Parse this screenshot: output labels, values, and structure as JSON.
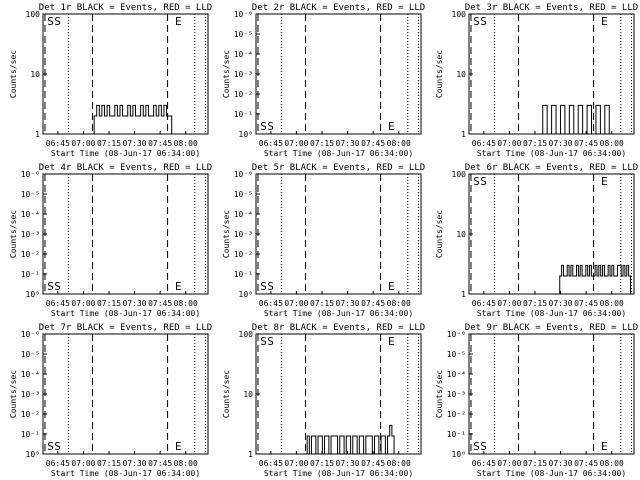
{
  "chart_data": [
    {
      "type": "line",
      "title": "Det 1r BLACK = Events, RED = LLD",
      "xlabel": "Start Time (08-Jun-17 06:34:00)",
      "ylabel": "Counts/sec",
      "xticks": [
        "06:45",
        "07:00",
        "07:15",
        "07:30",
        "07:45",
        "08:00"
      ],
      "yticks": [
        "1",
        "10",
        "100"
      ],
      "ylim": [
        1,
        100
      ],
      "yscale": "log",
      "grid": false,
      "series": [
        {
          "values": [
            2,
            3,
            2,
            3,
            2,
            3,
            2,
            2,
            3,
            2,
            3,
            2,
            2,
            3,
            2,
            3,
            2,
            2,
            3,
            2,
            3,
            2,
            2,
            3,
            2,
            3,
            2,
            3,
            2,
            2
          ]
        }
      ],
      "markers": [
        "S",
        "S",
        "E"
      ]
    },
    {
      "type": "line",
      "title": "Det 2r BLACK = Events, RED = LLD",
      "xlabel": "Start Time (08-Jun-17 06:34:00)",
      "ylabel": "Counts/sec",
      "xticks": [
        "06:45",
        "07:00",
        "07:15",
        "07:30",
        "07:45",
        "08:00"
      ],
      "yticks": [
        "10⁰",
        "10⁻¹",
        "10⁻²",
        "10⁻³",
        "10⁻⁴",
        "10⁻⁵",
        "10⁻⁶"
      ],
      "grid": false,
      "series": [],
      "markers": [
        "S",
        "S",
        "E"
      ]
    },
    {
      "type": "line",
      "title": "Det 3r BLACK = Events, RED = LLD",
      "xlabel": "Start Time (08-Jun-17 06:34:00)",
      "ylabel": "Counts/sec",
      "xticks": [
        "06:45",
        "07:00",
        "07:15",
        "07:30",
        "07:45",
        "08:00"
      ],
      "yticks": [
        "1",
        "10",
        "100"
      ],
      "ylim": [
        1,
        100
      ],
      "yscale": "log",
      "grid": false,
      "series": [
        {
          "values": [
            1,
            3,
            1,
            3,
            1,
            3,
            1,
            3,
            1,
            3,
            1,
            3,
            1,
            3,
            1,
            3
          ]
        }
      ],
      "markers": [
        "S",
        "S",
        "E"
      ]
    },
    {
      "type": "line",
      "title": "Det 4r BLACK = Events, RED = LLD",
      "xlabel": "Start Time (08-Jun-17 06:34:00)",
      "ylabel": "Counts/sec",
      "xticks": [
        "06:45",
        "07:00",
        "07:15",
        "07:30",
        "07:45",
        "08:00"
      ],
      "yticks": [
        "10⁰",
        "10⁻¹",
        "10⁻²",
        "10⁻³",
        "10⁻⁴",
        "10⁻⁵",
        "10⁻⁶"
      ],
      "grid": false,
      "series": [],
      "markers": [
        "S",
        "S",
        "E"
      ]
    },
    {
      "type": "line",
      "title": "Det 5r BLACK = Events, RED = LLD",
      "xlabel": "Start Time (08-Jun-17 06:34:00)",
      "ylabel": "Counts/sec",
      "xticks": [
        "06:45",
        "07:00",
        "07:15",
        "07:30",
        "07:45",
        "08:00"
      ],
      "yticks": [
        "10⁰",
        "10⁻¹",
        "10⁻²",
        "10⁻³",
        "10⁻⁴",
        "10⁻⁵",
        "10⁻⁶"
      ],
      "grid": false,
      "series": [],
      "markers": [
        "S",
        "S",
        "E"
      ]
    },
    {
      "type": "line",
      "title": "Det 6r BLACK = Events, RED = LLD",
      "xlabel": "Start Time (08-Jun-17 06:34:00)",
      "ylabel": "Counts/sec",
      "xticks": [
        "06:45",
        "07:00",
        "07:15",
        "07:30",
        "07:45",
        "08:00"
      ],
      "yticks": [
        "1",
        "10",
        "100"
      ],
      "ylim": [
        1,
        100
      ],
      "yscale": "log",
      "grid": false,
      "series": [
        {
          "values": [
            2,
            3,
            2,
            2,
            3,
            2,
            3,
            2,
            2,
            3,
            2,
            3,
            2,
            2,
            3,
            2,
            3,
            2,
            2,
            3,
            2,
            3,
            2,
            3,
            2,
            2,
            3,
            2,
            3,
            2,
            2,
            3,
            3,
            2,
            3,
            2,
            3,
            2,
            1
          ]
        }
      ],
      "markers": [
        "S",
        "S",
        "E"
      ]
    },
    {
      "type": "line",
      "title": "Det 7r BLACK = Events, RED = LLD",
      "xlabel": "Start Time (08-Jun-17 06:34:00)",
      "ylabel": "Counts/sec",
      "xticks": [
        "06:45",
        "07:00",
        "07:15",
        "07:30",
        "07:45",
        "08:00"
      ],
      "yticks": [
        "10⁰",
        "10⁻¹",
        "10⁻²",
        "10⁻³",
        "10⁻⁴",
        "10⁻⁵",
        "10⁻⁶"
      ],
      "grid": false,
      "series": [],
      "markers": [
        "S",
        "S",
        "E"
      ]
    },
    {
      "type": "line",
      "title": "Det 8r BLACK = Events, RED = LLD",
      "xlabel": "Start Time (08-Jun-17 06:34:00)",
      "ylabel": "Counts/sec",
      "xticks": [
        "06:45",
        "07:00",
        "07:15",
        "07:30",
        "07:45",
        "08:00"
      ],
      "yticks": [
        "1",
        "10",
        "100"
      ],
      "ylim": [
        1,
        100
      ],
      "yscale": "log",
      "grid": false,
      "series": [
        {
          "values": [
            2,
            1,
            2,
            2,
            1,
            2,
            2,
            1,
            2,
            2,
            1,
            2,
            2,
            2,
            1,
            2,
            2,
            1,
            2,
            2,
            1,
            2,
            2,
            1,
            2,
            2,
            1,
            2,
            2,
            2,
            1,
            2,
            2,
            1,
            2,
            2,
            1,
            2,
            3,
            2,
            1
          ]
        }
      ],
      "markers": [
        "S",
        "S",
        "E"
      ]
    },
    {
      "type": "line",
      "title": "Det 9r BLACK = Events, RED = LLD",
      "xlabel": "Start Time (08-Jun-17 06:34:00)",
      "ylabel": "Counts/sec",
      "xticks": [
        "06:45",
        "07:00",
        "07:15",
        "07:30",
        "07:45",
        "08:00"
      ],
      "yticks": [
        "10⁰",
        "10⁻¹",
        "10⁻²",
        "10⁻³",
        "10⁻⁴",
        "10⁻⁵",
        "10⁻⁶"
      ],
      "grid": false,
      "series": [],
      "markers": [
        "S",
        "S",
        "E"
      ]
    }
  ]
}
